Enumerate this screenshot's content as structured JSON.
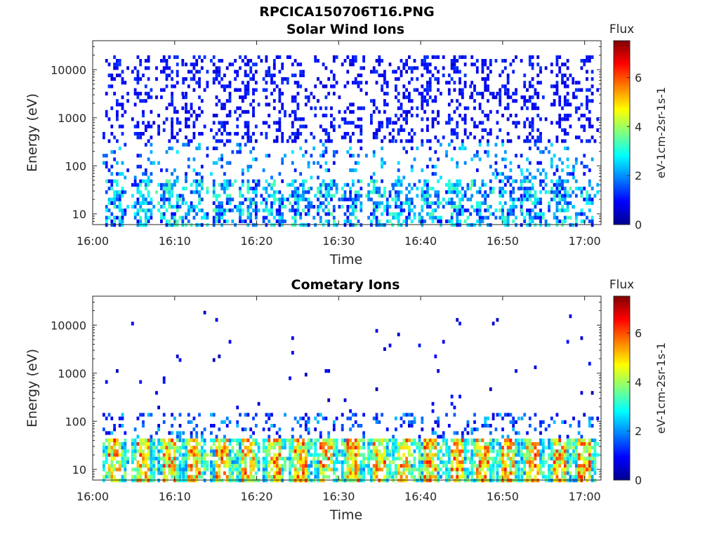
{
  "figure": {
    "filename_title": "RPCICA150706T16.PNG"
  },
  "chart_data": [
    {
      "type": "heatmap",
      "title": "Solar Wind Ions",
      "xlabel": "Time",
      "ylabel": "Energy (eV)",
      "x_range": [
        "16:00",
        "17:02"
      ],
      "x_ticks": [
        "16:00",
        "16:10",
        "16:20",
        "16:30",
        "16:40",
        "16:50",
        "17:00"
      ],
      "y_scale": "log",
      "ylim": [
        6,
        40000
      ],
      "y_ticks": [
        {
          "value": 10,
          "label": "10"
        },
        {
          "value": 100,
          "label": "100"
        },
        {
          "value": 1000,
          "label": "1000"
        },
        {
          "value": 10000,
          "label": "10000"
        }
      ],
      "colorbar": {
        "label": "Flux",
        "unit": "eV-1cm-2sr-1s-1",
        "range": [
          0,
          7.5
        ],
        "ticks": [
          "0",
          "2",
          "4",
          "6"
        ],
        "colormap": "jet"
      },
      "sweep_times_min": [
        2.5,
        6.0,
        9.2,
        12.2,
        15.6,
        18.8,
        22.0,
        25.2,
        28.3,
        31.6,
        34.8,
        37.8,
        41.0,
        44.3,
        47.4,
        50.5,
        53.5,
        56.8,
        59.8
      ],
      "strips": [
        {
          "band": "10-60 eV",
          "peak_flux": 3.5
        },
        {
          "band": "60-300 eV",
          "peak_flux": 2.5
        },
        {
          "band": "300-20000 eV",
          "peak_flux": 0.8
        }
      ],
      "grid": false
    },
    {
      "type": "heatmap",
      "title": "Cometary Ions",
      "xlabel": "Time",
      "ylabel": "Energy (eV)",
      "x_range": [
        "16:00",
        "17:02"
      ],
      "x_ticks": [
        "16:00",
        "16:10",
        "16:20",
        "16:30",
        "16:40",
        "16:50",
        "17:00"
      ],
      "y_scale": "log",
      "ylim": [
        6,
        40000
      ],
      "y_ticks": [
        {
          "value": 10,
          "label": "10"
        },
        {
          "value": 100,
          "label": "100"
        },
        {
          "value": 1000,
          "label": "1000"
        },
        {
          "value": 10000,
          "label": "10000"
        }
      ],
      "colorbar": {
        "label": "Flux",
        "unit": "eV-1cm-2sr-1s-1",
        "range": [
          0,
          7.5
        ],
        "ticks": [
          "0",
          "2",
          "4",
          "6"
        ],
        "colormap": "jet"
      },
      "sweep_times_min": [
        2.5,
        6.0,
        9.2,
        12.2,
        15.6,
        18.8,
        22.0,
        25.2,
        28.3,
        31.6,
        34.8,
        37.8,
        41.0,
        44.3,
        47.4,
        50.5,
        53.5,
        56.8,
        59.8
      ],
      "strips": [
        {
          "band": "10-40 eV",
          "peak_flux": 6.0
        },
        {
          "band": "40-150 eV",
          "peak_flux": 2.0
        },
        {
          "band": "150-20000 eV",
          "peak_flux": 0.6
        }
      ],
      "grid": false
    }
  ]
}
